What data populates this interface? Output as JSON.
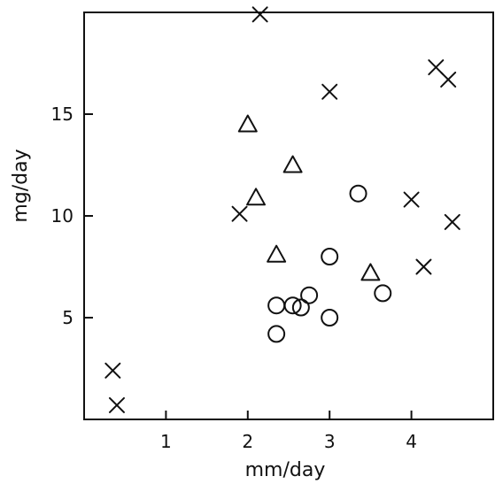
{
  "chart_data": {
    "type": "scatter",
    "title": "",
    "xlabel": "mm/day",
    "ylabel": "mg/day",
    "xlim": [
      0,
      5
    ],
    "ylim": [
      0,
      20
    ],
    "xticks": [
      1,
      2,
      3,
      4
    ],
    "yticks": [
      5,
      10,
      15
    ],
    "grid": false,
    "legend": "none",
    "series": [
      {
        "marker": "x",
        "points": [
          {
            "x": 0.35,
            "y": 2.4
          },
          {
            "x": 0.4,
            "y": 0.7
          },
          {
            "x": 1.9,
            "y": 10.1
          },
          {
            "x": 2.15,
            "y": 19.9
          },
          {
            "x": 3.0,
            "y": 16.1
          },
          {
            "x": 4.0,
            "y": 10.8
          },
          {
            "x": 4.15,
            "y": 7.5
          },
          {
            "x": 4.3,
            "y": 17.3
          },
          {
            "x": 4.45,
            "y": 16.7
          },
          {
            "x": 4.5,
            "y": 9.7
          }
        ]
      },
      {
        "marker": "triangle",
        "points": [
          {
            "x": 2.0,
            "y": 14.5
          },
          {
            "x": 2.1,
            "y": 10.9
          },
          {
            "x": 2.35,
            "y": 8.1
          },
          {
            "x": 2.55,
            "y": 12.5
          },
          {
            "x": 3.5,
            "y": 7.2
          }
        ]
      },
      {
        "marker": "circle",
        "points": [
          {
            "x": 2.35,
            "y": 4.2
          },
          {
            "x": 2.35,
            "y": 5.6
          },
          {
            "x": 2.55,
            "y": 5.6
          },
          {
            "x": 2.65,
            "y": 5.5
          },
          {
            "x": 2.75,
            "y": 6.1
          },
          {
            "x": 3.0,
            "y": 5.0
          },
          {
            "x": 3.0,
            "y": 8.0
          },
          {
            "x": 3.35,
            "y": 11.1
          },
          {
            "x": 3.65,
            "y": 6.2
          }
        ]
      }
    ]
  }
}
